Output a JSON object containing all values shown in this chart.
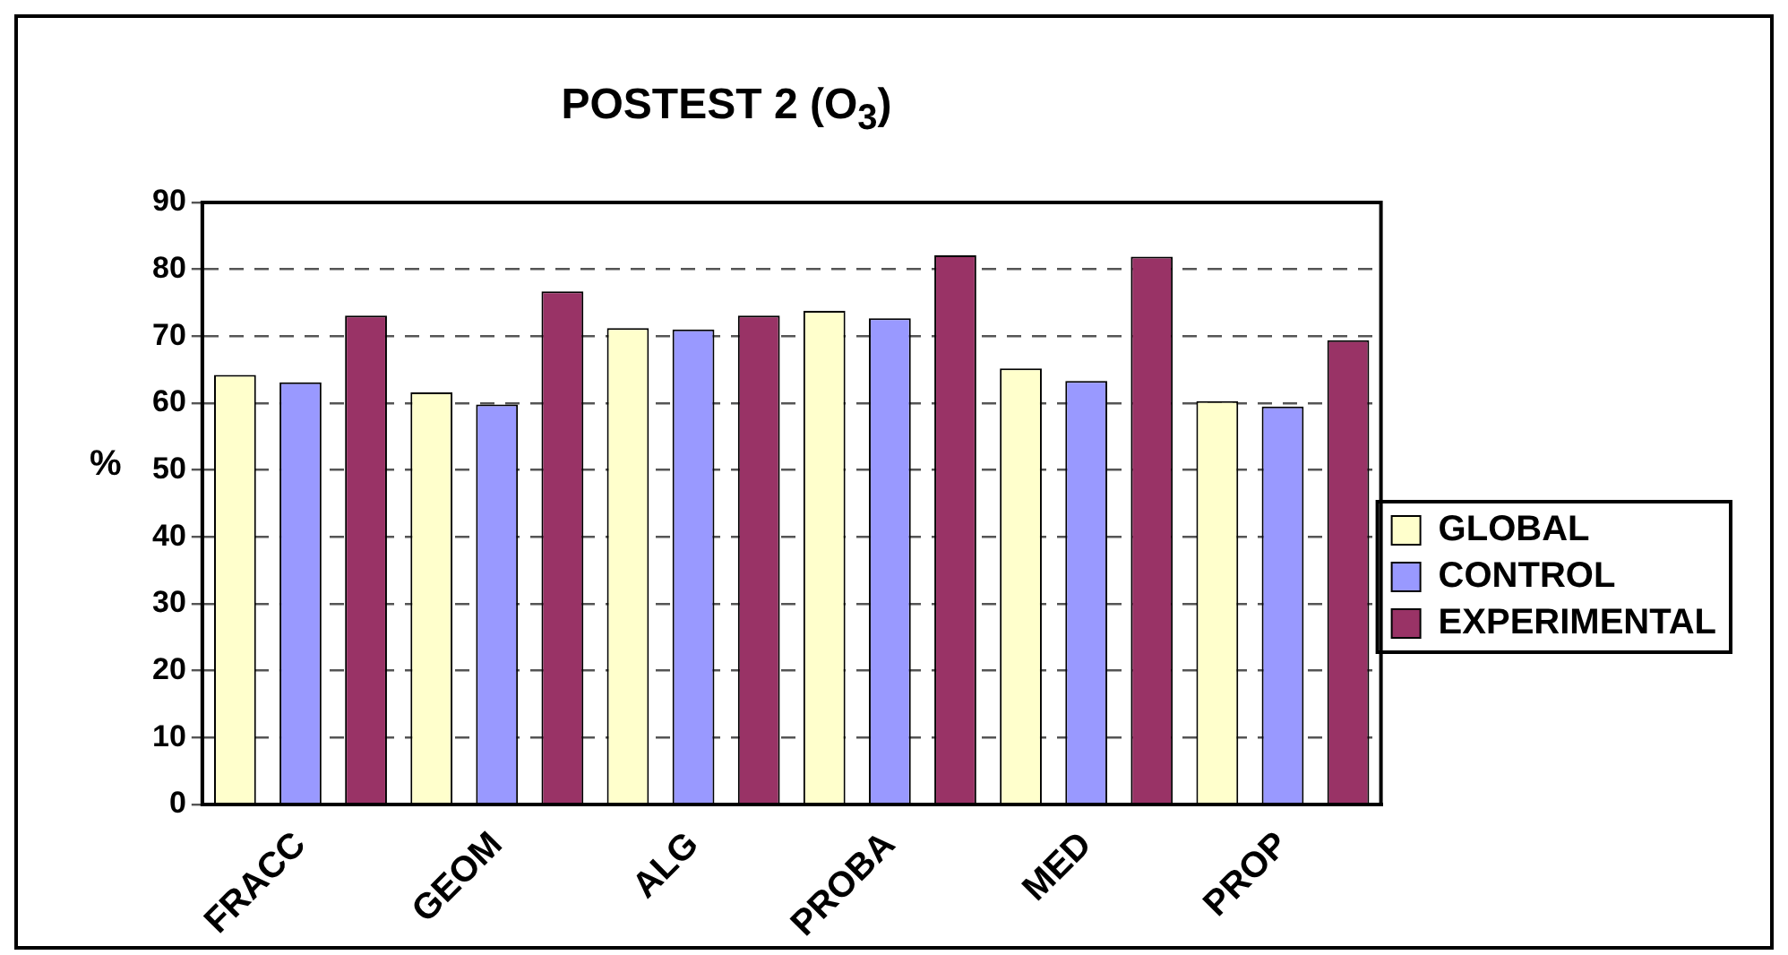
{
  "chart_data": {
    "type": "bar",
    "title": "POSTEST 2 (O$_{3}$)",
    "ylabel": "%",
    "categories": [
      "FRACC",
      "GEOM",
      "ALG",
      "PROBA",
      "MED",
      "PROP"
    ],
    "series": [
      {
        "name": "GLOBAL",
        "color": "#ffffcc",
        "values": [
          64.2,
          61.6,
          71.2,
          73.8,
          65.2,
          60.3
        ]
      },
      {
        "name": "CONTROL",
        "color": "#9999ff",
        "values": [
          63.1,
          59.8,
          71.0,
          72.7,
          63.3,
          59.5
        ]
      },
      {
        "name": "EXPERIMENTAL",
        "color": "#993366",
        "values": [
          73.1,
          76.7,
          73.1,
          82.1,
          81.9,
          69.4
        ]
      }
    ],
    "ylim": [
      0,
      90
    ],
    "yticks": [
      0,
      10,
      20,
      30,
      40,
      50,
      60,
      70,
      80,
      90
    ],
    "grid": "y",
    "legend": "right"
  }
}
